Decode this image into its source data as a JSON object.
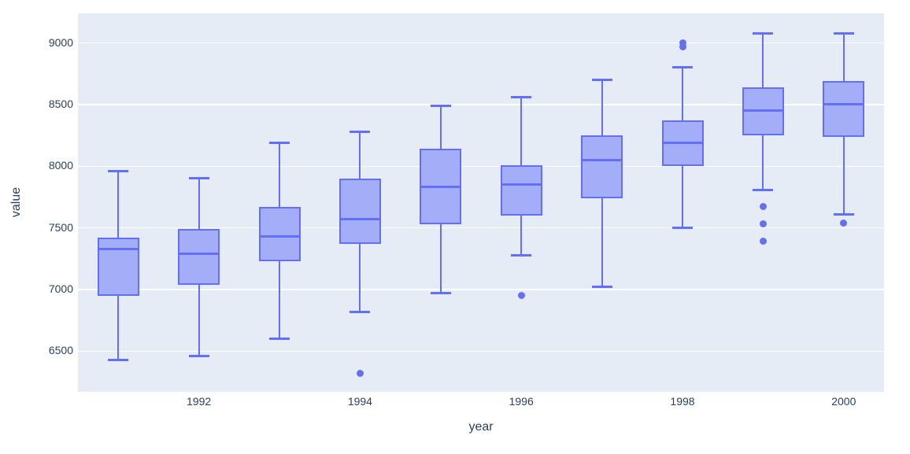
{
  "chart_data": {
    "type": "box",
    "title": "",
    "xlabel": "year",
    "ylabel": "value",
    "legend_visible": false,
    "grid": true,
    "categories": [
      "1991",
      "1992",
      "1993",
      "1994",
      "1995",
      "1996",
      "1997",
      "1998",
      "1999",
      "2000"
    ],
    "xtick_labels": [
      "1992",
      "1994",
      "1996",
      "1998",
      "2000"
    ],
    "yticks": [
      6500,
      7000,
      7500,
      8000,
      8500,
      9000
    ],
    "ylim": [
      6170,
      9240
    ],
    "colors": {
      "figure_background": "#ffffff",
      "plot_background": "#e5ecf6",
      "gridline": "#ffffff",
      "box_line": "#636efa",
      "box_fill": "#a4adf8",
      "outlier": "#6470f0",
      "text": "#2a3f5f"
    },
    "boxes": [
      {
        "category": "1991",
        "whisker_low": 6430,
        "q1": 6950,
        "median": 7330,
        "q3": 7420,
        "whisker_high": 7960,
        "outliers": []
      },
      {
        "category": "1992",
        "whisker_low": 6460,
        "q1": 7040,
        "median": 7290,
        "q3": 7490,
        "whisker_high": 7900,
        "outliers": []
      },
      {
        "category": "1993",
        "whisker_low": 6600,
        "q1": 7230,
        "median": 7430,
        "q3": 7670,
        "whisker_high": 8190,
        "outliers": []
      },
      {
        "category": "1994",
        "whisker_low": 6820,
        "q1": 7370,
        "median": 7570,
        "q3": 7900,
        "whisker_high": 8280,
        "outliers": [
          6320
        ]
      },
      {
        "category": "1995",
        "whisker_low": 6970,
        "q1": 7530,
        "median": 7830,
        "q3": 8140,
        "whisker_high": 8490,
        "outliers": []
      },
      {
        "category": "1996",
        "whisker_low": 7280,
        "q1": 7600,
        "median": 7850,
        "q3": 8010,
        "whisker_high": 8560,
        "outliers": [
          6950
        ]
      },
      {
        "category": "1997",
        "whisker_low": 7020,
        "q1": 7740,
        "median": 8050,
        "q3": 8250,
        "whisker_high": 8700,
        "outliers": []
      },
      {
        "category": "1998",
        "whisker_low": 7500,
        "q1": 8000,
        "median": 8190,
        "q3": 8370,
        "whisker_high": 8800,
        "outliers": [
          8970,
          9000
        ]
      },
      {
        "category": "1999",
        "whisker_low": 7810,
        "q1": 8250,
        "median": 8450,
        "q3": 8640,
        "whisker_high": 9080,
        "outliers": [
          7670,
          7530,
          7390
        ]
      },
      {
        "category": "2000",
        "whisker_low": 7610,
        "q1": 8240,
        "median": 8500,
        "q3": 8690,
        "whisker_high": 9080,
        "outliers": [
          7540
        ]
      }
    ]
  }
}
